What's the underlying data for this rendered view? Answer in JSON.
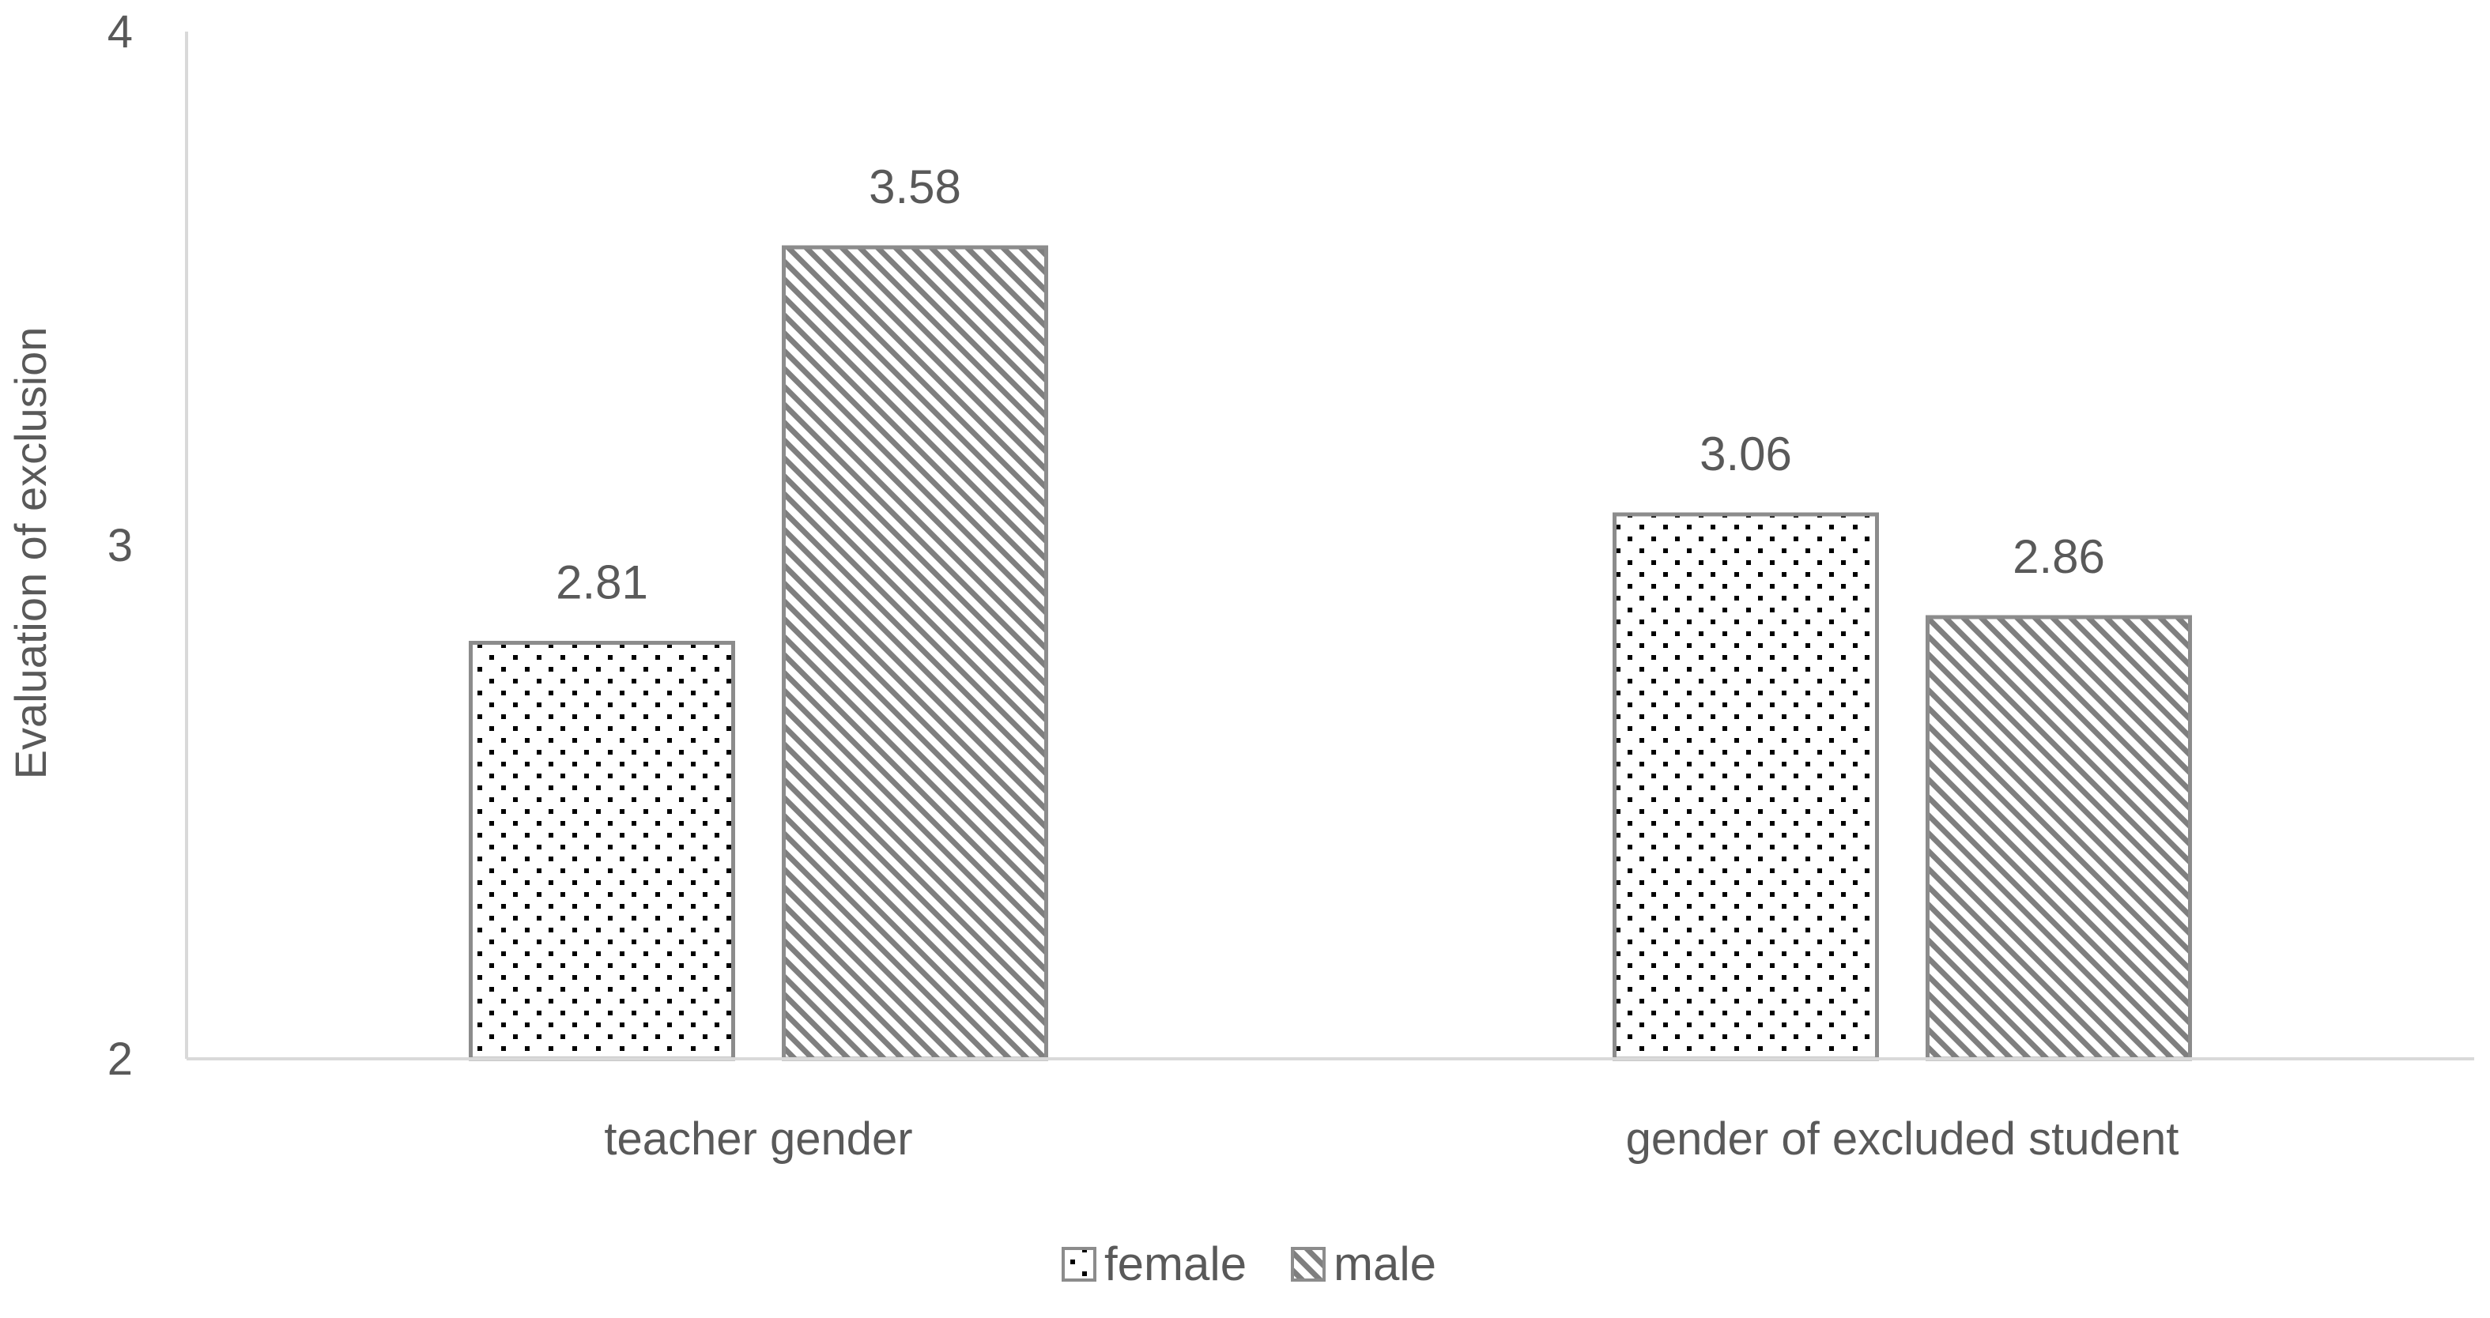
{
  "chart_data": {
    "type": "bar",
    "title": "",
    "xlabel": "",
    "ylabel": "Evaluation of exclusion",
    "ylim": [
      2,
      4
    ],
    "yticks": [
      "2",
      "3",
      "4"
    ],
    "grid": false,
    "legend_position": "bottom",
    "categories": [
      "teacher gender",
      "gender of excluded student"
    ],
    "series": [
      {
        "name": "female",
        "values": [
          2.81,
          3.06
        ],
        "labels": [
          "2.81",
          "3.06"
        ],
        "pattern": "dots",
        "color": "#000000",
        "border_color": "#8c8c8c"
      },
      {
        "name": "male",
        "values": [
          3.58,
          2.86
        ],
        "labels": [
          "3.58",
          "2.86"
        ],
        "pattern": "diagonal-stripes",
        "color": "#7f7f7f",
        "border_color": "#8c8c8c"
      }
    ]
  }
}
